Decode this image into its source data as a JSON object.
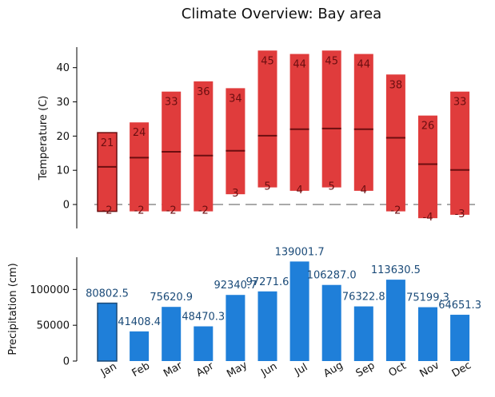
{
  "title": "Climate Overview: Bay area",
  "colors": {
    "temp_bar": "#e03c3c",
    "temp_bar_highlight_edge": "#6b0e10",
    "temp_mean_line": "#6b0e10",
    "temp_label": "#6b0e10",
    "zero_line": "#aaaaaa",
    "precip_bar": "#1f7fd9",
    "precip_bar_highlight_edge": "#1a4a78",
    "precip_label": "#1a4a78"
  },
  "chart_data": [
    {
      "type": "bar",
      "subtype": "floating-range",
      "ylabel": "Temperature (C)",
      "ylim": [
        -7,
        46
      ],
      "yticks": [
        0,
        10,
        20,
        30,
        40
      ],
      "categories": [
        "Jan",
        "Feb",
        "Mar",
        "Apr",
        "May",
        "Jun",
        "Jul",
        "Aug",
        "Sep",
        "Oct",
        "Nov",
        "Dec"
      ],
      "max": [
        21,
        24,
        33,
        36,
        34,
        45,
        44,
        45,
        44,
        38,
        26,
        33
      ],
      "min": [
        -2,
        -2,
        -2,
        -2,
        3,
        5,
        4,
        5,
        4,
        -2,
        -4,
        -3
      ],
      "mean": [
        11,
        13.7,
        15.4,
        14.3,
        15.7,
        20.1,
        22,
        22.2,
        22,
        19.5,
        11.8,
        10.1
      ],
      "max_labels": [
        "21",
        "24",
        "33",
        "36",
        "34",
        "45",
        "44",
        "45",
        "44",
        "38",
        "26",
        "33"
      ],
      "min_labels": [
        "-2",
        "-2",
        "-2",
        "-2",
        "3",
        "5",
        "4",
        "5",
        "4",
        "-2",
        "-4",
        "-3"
      ],
      "highlighted_index": 0,
      "reference_line": 0
    },
    {
      "type": "bar",
      "ylabel": "Precipitation (cm)",
      "ylim": [
        0,
        145000
      ],
      "yticks": [
        0,
        50000,
        100000
      ],
      "ytick_labels": [
        "0",
        "50000",
        "100000"
      ],
      "categories": [
        "Jan",
        "Feb",
        "Mar",
        "Apr",
        "May",
        "Jun",
        "Jul",
        "Aug",
        "Sep",
        "Oct",
        "Nov",
        "Dec"
      ],
      "values": [
        80802.5,
        41408.4,
        75620.9,
        48470.3,
        92340.7,
        97271.6,
        139001.7,
        106287.0,
        76322.8,
        113630.5,
        75199.3,
        64651.3
      ],
      "value_labels": [
        "80802.5",
        "41408.4",
        "75620.9",
        "48470.3",
        "92340.7",
        "97271.6",
        "139001.7",
        "106287.0",
        "76322.8",
        "113630.5",
        "75199.3",
        "64651.3"
      ],
      "highlighted_index": 0
    }
  ]
}
